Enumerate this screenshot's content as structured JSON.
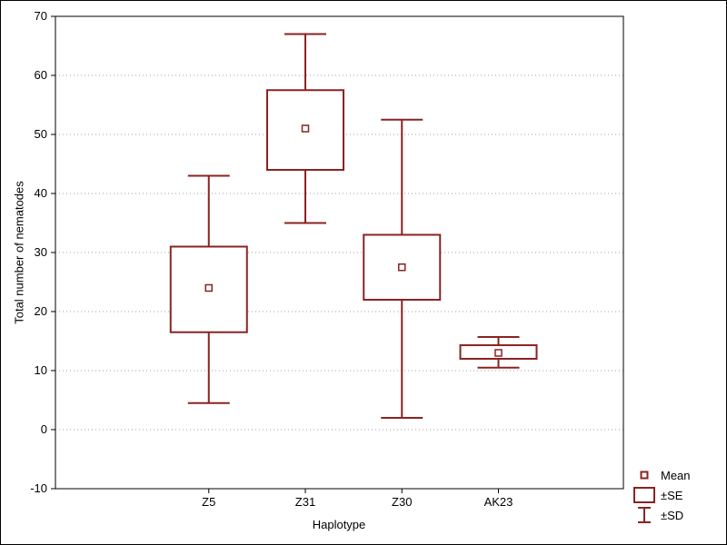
{
  "chart_data": {
    "type": "box",
    "title": "",
    "xlabel": "Haplotype",
    "ylabel": "Total number of nematodes",
    "categories": [
      "Z5",
      "Z31",
      "Z30",
      "AK23"
    ],
    "series": [
      {
        "name": "Z5",
        "mean": 24,
        "se_low": 16.5,
        "se_high": 31,
        "sd_low": 4.5,
        "sd_high": 43
      },
      {
        "name": "Z31",
        "mean": 51,
        "se_low": 44,
        "se_high": 57.5,
        "sd_low": 35,
        "sd_high": 67
      },
      {
        "name": "Z30",
        "mean": 27.5,
        "se_low": 22,
        "se_high": 33,
        "sd_low": 2,
        "sd_high": 52.5
      },
      {
        "name": "AK23",
        "mean": 13,
        "se_low": 12,
        "se_high": 14.3,
        "sd_low": 10.5,
        "sd_high": 15.7
      }
    ],
    "ylim": [
      -10,
      70
    ],
    "ytick_step": 10,
    "grid": true,
    "legend": {
      "position": "bottom-right",
      "items": [
        {
          "symbol": "mean-square",
          "label": "Mean"
        },
        {
          "symbol": "se-box",
          "label": "±SE"
        },
        {
          "symbol": "sd-whisker",
          "label": "±SD"
        }
      ]
    },
    "colors": {
      "series": "#8b2222",
      "grid": "#a0a0a0",
      "axis": "#000000",
      "text": "#000000",
      "background": "#ffffff"
    }
  }
}
